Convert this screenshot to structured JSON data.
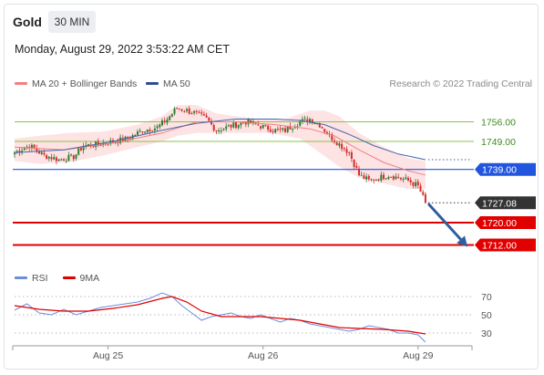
{
  "header": {
    "title": "Gold",
    "timeframe": "30 MIN",
    "datetime": "Monday, August 29, 2022 3:53:22 AM CET"
  },
  "legend": {
    "ma20": "MA 20 + Bollinger Bands",
    "ma50": "MA 50",
    "credit": "Research © 2022 Trading Central"
  },
  "rsi_legend": {
    "rsi": "RSI",
    "ma": "9MA"
  },
  "colors": {
    "up_candle": "#2e7d32",
    "down_candle": "#d32f2f",
    "ma20": "#f08080",
    "ma50": "#4466aa",
    "bollinger_fill": "#fde0e0",
    "resistance": "#8bc34a",
    "pivot": "#2255dd",
    "support": "#e00000",
    "last_price_bg": "#333333",
    "arrow": "#2f5f9e",
    "rsi": "#6c8ddc",
    "rsi_ma": "#e00000"
  },
  "chart_data": [
    {
      "type": "candlestick",
      "title": "Gold 30 MIN",
      "xlabel": "",
      "ylabel": "",
      "x_ticks": [
        "Aug 25",
        "Aug 26",
        "Aug 29"
      ],
      "ylim": [
        1705,
        1764
      ],
      "last_price": 1727.08,
      "levels": [
        {
          "value": 1756.0,
          "label": "1756.00",
          "kind": "resistance"
        },
        {
          "value": 1749.0,
          "label": "1749.00",
          "kind": "resistance"
        },
        {
          "value": 1739.0,
          "label": "1739.00",
          "kind": "pivot"
        },
        {
          "value": 1720.0,
          "label": "1720.00",
          "kind": "support"
        },
        {
          "value": 1712.0,
          "label": "1712.00",
          "kind": "support"
        }
      ],
      "close_path": [
        [
          0,
          1745
        ],
        [
          6,
          1747.5
        ],
        [
          12,
          1744
        ],
        [
          18,
          1742.5
        ],
        [
          24,
          1743.5
        ],
        [
          28,
          1747.5
        ],
        [
          34,
          1748
        ],
        [
          40,
          1749
        ],
        [
          46,
          1750
        ],
        [
          52,
          1753
        ],
        [
          58,
          1754
        ],
        [
          62,
          1757
        ],
        [
          66,
          1761
        ],
        [
          70,
          1760
        ],
        [
          74,
          1759
        ],
        [
          78,
          1757
        ],
        [
          82,
          1753
        ],
        [
          86,
          1754
        ],
        [
          90,
          1755
        ],
        [
          94,
          1756
        ],
        [
          98,
          1755
        ],
        [
          102,
          1754
        ],
        [
          106,
          1753
        ],
        [
          110,
          1753
        ],
        [
          116,
          1756
        ],
        [
          120,
          1757
        ],
        [
          124,
          1755
        ],
        [
          128,
          1751
        ],
        [
          132,
          1748
        ],
        [
          136,
          1745
        ],
        [
          138,
          1741
        ],
        [
          140,
          1737
        ],
        [
          144,
          1735
        ],
        [
          148,
          1736
        ],
        [
          152,
          1737
        ],
        [
          156,
          1736
        ],
        [
          160,
          1735
        ],
        [
          164,
          1733
        ],
        [
          167,
          1727.1
        ]
      ],
      "ma20": [
        [
          0,
          1747
        ],
        [
          20,
          1746
        ],
        [
          40,
          1748.5
        ],
        [
          60,
          1752
        ],
        [
          74,
          1756
        ],
        [
          90,
          1756
        ],
        [
          106,
          1755
        ],
        [
          120,
          1753.5
        ],
        [
          130,
          1751
        ],
        [
          140,
          1746
        ],
        [
          150,
          1741.5
        ],
        [
          160,
          1738.5
        ],
        [
          167,
          1737
        ]
      ],
      "bollinger_upper": [
        [
          0,
          1750
        ],
        [
          10,
          1751
        ],
        [
          22,
          1752
        ],
        [
          36,
          1752.5
        ],
        [
          50,
          1755
        ],
        [
          60,
          1758
        ],
        [
          66,
          1762
        ],
        [
          74,
          1762
        ],
        [
          82,
          1759
        ],
        [
          90,
          1758
        ],
        [
          100,
          1757
        ],
        [
          110,
          1757
        ],
        [
          120,
          1760
        ],
        [
          126,
          1760
        ],
        [
          132,
          1758
        ],
        [
          140,
          1752
        ],
        [
          150,
          1747
        ],
        [
          160,
          1743
        ],
        [
          167,
          1742
        ]
      ],
      "bollinger_lower": [
        [
          0,
          1742
        ],
        [
          10,
          1741
        ],
        [
          22,
          1741.5
        ],
        [
          36,
          1744
        ],
        [
          50,
          1747
        ],
        [
          60,
          1749
        ],
        [
          66,
          1751
        ],
        [
          74,
          1752
        ],
        [
          84,
          1752
        ],
        [
          94,
          1752
        ],
        [
          104,
          1752
        ],
        [
          116,
          1750
        ],
        [
          124,
          1745
        ],
        [
          132,
          1740
        ],
        [
          140,
          1736
        ],
        [
          150,
          1734
        ],
        [
          160,
          1732
        ],
        [
          167,
          1732
        ]
      ],
      "ma50": [
        [
          0,
          1745
        ],
        [
          20,
          1746
        ],
        [
          40,
          1749
        ],
        [
          60,
          1753
        ],
        [
          74,
          1755.5
        ],
        [
          90,
          1757
        ],
        [
          106,
          1757
        ],
        [
          116,
          1756.5
        ],
        [
          126,
          1755
        ],
        [
          136,
          1751.5
        ],
        [
          146,
          1747.5
        ],
        [
          156,
          1744.5
        ],
        [
          167,
          1742.5
        ]
      ]
    },
    {
      "type": "line",
      "title": "RSI",
      "xlabel": "",
      "ylabel": "",
      "ylim": [
        17,
        77
      ],
      "y_ticks": [
        70,
        50,
        30
      ],
      "series": [
        {
          "name": "RSI",
          "points": [
            [
              0,
              55
            ],
            [
              5,
              62
            ],
            [
              10,
              52
            ],
            [
              15,
              50
            ],
            [
              20,
              56
            ],
            [
              25,
              50
            ],
            [
              30,
              54
            ],
            [
              35,
              58
            ],
            [
              40,
              60
            ],
            [
              45,
              62
            ],
            [
              50,
              64
            ],
            [
              55,
              68
            ],
            [
              60,
              74
            ],
            [
              64,
              70
            ],
            [
              68,
              60
            ],
            [
              72,
              52
            ],
            [
              76,
              44
            ],
            [
              80,
              48
            ],
            [
              84,
              50
            ],
            [
              88,
              52
            ],
            [
              92,
              48
            ],
            [
              96,
              46
            ],
            [
              100,
              50
            ],
            [
              104,
              46
            ],
            [
              108,
              42
            ],
            [
              112,
              46
            ],
            [
              116,
              44
            ],
            [
              120,
              40
            ],
            [
              124,
              38
            ],
            [
              128,
              36
            ],
            [
              132,
              34
            ],
            [
              136,
              32
            ],
            [
              140,
              34
            ],
            [
              144,
              38
            ],
            [
              148,
              36
            ],
            [
              152,
              34
            ],
            [
              156,
              30
            ],
            [
              160,
              30
            ],
            [
              164,
              28
            ],
            [
              167,
              20
            ]
          ]
        },
        {
          "name": "9MA",
          "points": [
            [
              0,
              60
            ],
            [
              10,
              56
            ],
            [
              20,
              54
            ],
            [
              30,
              54
            ],
            [
              40,
              57
            ],
            [
              50,
              61
            ],
            [
              60,
              68
            ],
            [
              64,
              70
            ],
            [
              70,
              64
            ],
            [
              76,
              54
            ],
            [
              84,
              48
            ],
            [
              92,
              48
            ],
            [
              100,
              48
            ],
            [
              108,
              46
            ],
            [
              116,
              44
            ],
            [
              124,
              40
            ],
            [
              132,
              36
            ],
            [
              140,
              35
            ],
            [
              150,
              34
            ],
            [
              160,
              32
            ],
            [
              167,
              29
            ]
          ]
        }
      ]
    }
  ]
}
